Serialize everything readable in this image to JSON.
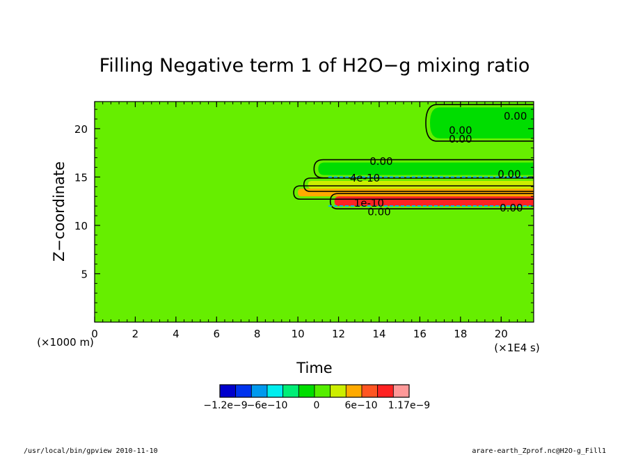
{
  "chart_data": {
    "type": "heatmap",
    "title": "Filling Negative term 1 of H2O−g mixing ratio",
    "xlabel": "Time",
    "ylabel": "Z−coordinate",
    "x_unit": "(×1E4 s)",
    "y_unit": "(×1000 m)",
    "xlim": [
      0,
      21.6
    ],
    "ylim": [
      0,
      22.8
    ],
    "x_ticks": [
      "0",
      "2",
      "4",
      "6",
      "8",
      "10",
      "12",
      "14",
      "16",
      "18",
      "20"
    ],
    "y_ticks": [
      "5",
      "10",
      "15",
      "20"
    ],
    "background_value": 0,
    "colorbar": {
      "colors": [
        "#0000cc",
        "#0033ee",
        "#0099ee",
        "#00eeee",
        "#00ee77",
        "#00dd00",
        "#55ee00",
        "#ccee00",
        "#ffaa00",
        "#ff5522",
        "#ff2222",
        "#ff9999"
      ],
      "labels": [
        "−1.2e−9",
        "−6e−10",
        "0",
        "6e−10",
        "1.17e−9"
      ]
    },
    "bands": [
      {
        "value": 8e-10,
        "x_start": 10.0,
        "y_bottom": 13.0,
        "y_top": 13.8,
        "color": "#ffaa00"
      },
      {
        "value": 1.1e-09,
        "x_start": 11.8,
        "y_bottom": 12.0,
        "y_top": 13.0,
        "color": "#ff2222"
      },
      {
        "value": 4e-10,
        "x_start": 10.5,
        "y_bottom": 13.8,
        "y_top": 14.6,
        "color": "#ccee00"
      },
      {
        "value": 1e-10,
        "x_start": 11.0,
        "y_bottom": 15.2,
        "y_top": 16.5,
        "color": "#00dd00"
      },
      {
        "value": 1e-10,
        "x_start": 16.5,
        "y_bottom": 19.0,
        "y_top": 22.2,
        "color": "#00dd00"
      }
    ],
    "contour_labels": [
      {
        "text": "0.00",
        "x": 20.7,
        "y": 21.3
      },
      {
        "text": "0.00",
        "x": 18.0,
        "y": 19.8
      },
      {
        "text": "0.00",
        "x": 18.0,
        "y": 18.9
      },
      {
        "text": "0.00",
        "x": 14.1,
        "y": 16.6
      },
      {
        "text": "4e-10",
        "x": 13.3,
        "y": 14.9
      },
      {
        "text": "0.00",
        "x": 20.4,
        "y": 15.3
      },
      {
        "text": "1e-10",
        "x": 13.5,
        "y": 12.3
      },
      {
        "text": "0.00",
        "x": 14.0,
        "y": 11.4
      },
      {
        "text": "0.00",
        "x": 20.5,
        "y": 11.8
      }
    ]
  },
  "footer": {
    "left": "/usr/local/bin/gpview  2010-11-10",
    "right": "arare-earth_Zprof.nc@H2O-g_Fill1"
  }
}
